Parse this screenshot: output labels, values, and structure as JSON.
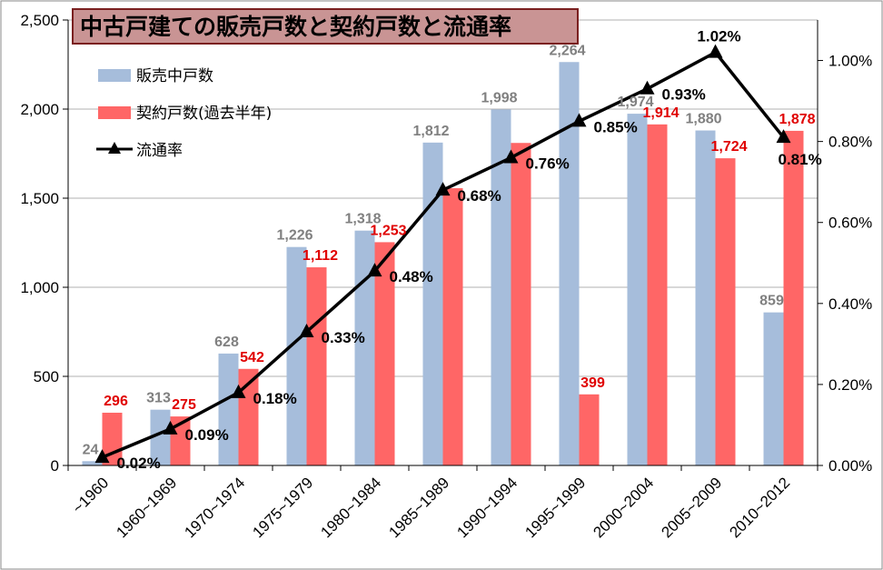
{
  "chart_data": {
    "type": "bar",
    "title": "中古戸建ての販売戸数と契約戸数と流通率",
    "categories": [
      "~1960",
      "1960~1969",
      "1970~1974",
      "1975~1979",
      "1980~1984",
      "1985~1989",
      "1990~1994",
      "1995~1999",
      "2000~2004",
      "2005~2009",
      "2010~2012"
    ],
    "series": [
      {
        "name": "販売中戸数",
        "type": "bar",
        "axis": "left",
        "color": "#a6bddb",
        "values": [
          24,
          313,
          628,
          1226,
          1318,
          1812,
          1998,
          2264,
          1974,
          1880,
          859
        ],
        "labels": [
          "24",
          "313",
          "628",
          "1,226",
          "1,318",
          "1,812",
          "1,998",
          "2,264",
          "1,974",
          "1,880",
          "859"
        ],
        "label_color": "#808080"
      },
      {
        "name": "契約戸数(過去半年)",
        "type": "bar",
        "axis": "left",
        "color": "#ff6666",
        "values": [
          296,
          275,
          542,
          1112,
          1253,
          1556,
          1810,
          399,
          1914,
          1724,
          1878
        ],
        "labels": [
          "296",
          "275",
          "542",
          "1,112",
          "1,253",
          "",
          "",
          "399",
          "1,914",
          "1,724",
          "1,878"
        ],
        "label_color": "#e00000"
      },
      {
        "name": "流通率",
        "type": "line",
        "axis": "right",
        "color": "#000000",
        "values": [
          0.02,
          0.09,
          0.18,
          0.33,
          0.48,
          0.68,
          0.76,
          0.85,
          0.93,
          1.02,
          0.81
        ],
        "labels": [
          "0.02%",
          "0.09%",
          "0.18%",
          "0.33%",
          "0.48%",
          "0.68%",
          "0.76%",
          "0.85%",
          "0.93%",
          "1.02%",
          "0.81%"
        ]
      }
    ],
    "y_left": {
      "ylim": [
        0,
        2500
      ],
      "ticks": [
        0,
        500,
        1000,
        1500,
        2000,
        2500
      ],
      "tick_labels": [
        "0",
        "500",
        "1,000",
        "1,500",
        "2,000",
        "2,500"
      ]
    },
    "y_right": {
      "ylim": [
        0,
        1.1
      ],
      "ticks": [
        0,
        0.2,
        0.4,
        0.6,
        0.8,
        1.0
      ],
      "tick_labels": [
        "0.00%",
        "0.20%",
        "0.40%",
        "0.60%",
        "0.80%",
        "1.00%"
      ]
    },
    "grid": true,
    "legend": "top-left",
    "colors": {
      "title_bg": "#c99494",
      "title_border": "#7a2020",
      "grid": "#b0b0b0"
    }
  }
}
